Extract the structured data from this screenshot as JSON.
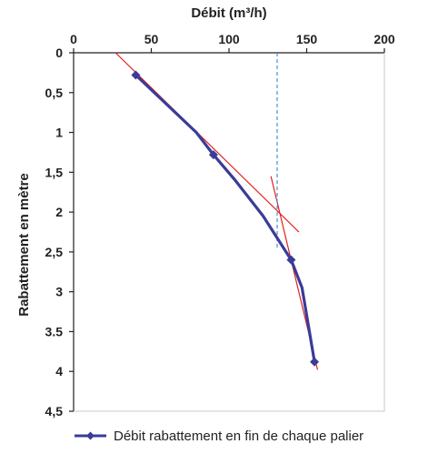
{
  "chart_data": {
    "type": "line",
    "xlabel": "Débit (m³/h)",
    "ylabel": "Rabattement en mètre",
    "xlim": [
      0,
      200
    ],
    "ylim": [
      0,
      4.5
    ],
    "x_axis_position": "top",
    "y_axis_inverted": true,
    "x_ticks": [
      "0",
      "50",
      "100",
      "150",
      "200"
    ],
    "x_tick_values": [
      0,
      50,
      100,
      150,
      200
    ],
    "y_ticks": [
      "0",
      "0,5",
      "1",
      "1,5",
      "2",
      "2,5",
      "3",
      "3.5",
      "4",
      "4,5"
    ],
    "y_tick_values": [
      0,
      0.5,
      1,
      1.5,
      2,
      2.5,
      3,
      3.5,
      4,
      4.5
    ],
    "grid": false,
    "legend_position": "bottom",
    "series": [
      {
        "name": "Débit rabattement en fin de chaque palier",
        "color": "#3a3c98",
        "marker": "diamond",
        "points": [
          {
            "x": 40,
            "y": 0.28
          },
          {
            "x": 79,
            "y": 1.0
          },
          {
            "x": 90,
            "y": 1.28
          },
          {
            "x": 104,
            "y": 1.6
          },
          {
            "x": 122,
            "y": 2.05
          },
          {
            "x": 140,
            "y": 2.6
          },
          {
            "x": 147,
            "y": 2.95
          },
          {
            "x": 155,
            "y": 3.88
          }
        ],
        "marker_indices": [
          0,
          2,
          5,
          7
        ]
      }
    ],
    "annotations": [
      {
        "kind": "tangent-line",
        "color": "#e02020",
        "from": {
          "x": 27,
          "y": 0.0
        },
        "to": {
          "x": 145,
          "y": 2.25
        }
      },
      {
        "kind": "tangent-line",
        "color": "#e02020",
        "from": {
          "x": 127,
          "y": 1.55
        },
        "to": {
          "x": 157,
          "y": 3.98
        }
      },
      {
        "kind": "vertical-dashed-line",
        "color": "#4a8fd4",
        "x": 131,
        "y_from": 0.0,
        "y_to": 2.45
      }
    ]
  }
}
